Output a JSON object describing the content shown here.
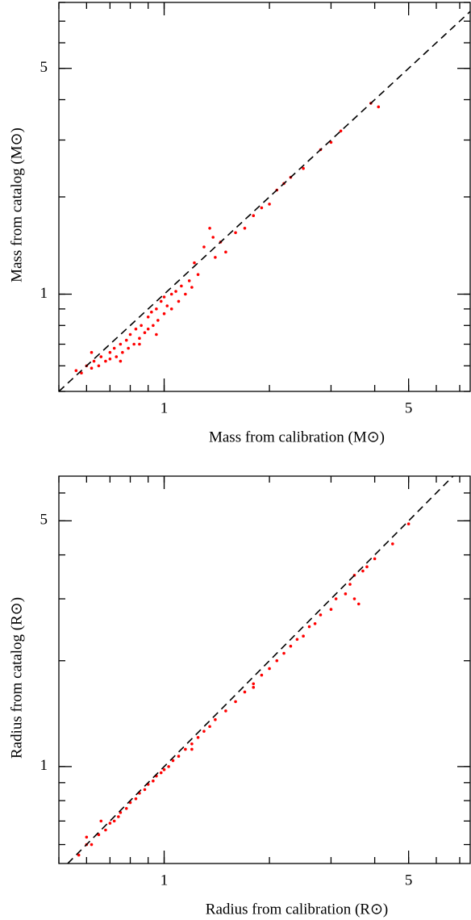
{
  "chart_data": [
    {
      "type": "scatter",
      "xlabel": "Mass from calibration (M⊙)",
      "ylabel": "Mass from catalog (M⊙)",
      "xscale": "log",
      "yscale": "log",
      "identity_line": true,
      "color": "#ff0000",
      "xlim": [
        0.5,
        7.5
      ],
      "ylim": [
        0.5,
        8
      ],
      "xticks": [
        1,
        5
      ],
      "yticks": [
        1,
        5
      ],
      "x": [
        0.56,
        0.58,
        0.6,
        0.62,
        0.63,
        0.65,
        0.66,
        0.68,
        0.7,
        0.7,
        0.72,
        0.73,
        0.75,
        0.76,
        0.78,
        0.79,
        0.8,
        0.82,
        0.83,
        0.85,
        0.86,
        0.88,
        0.9,
        0.9,
        0.92,
        0.93,
        0.95,
        0.96,
        0.98,
        1.0,
        1.0,
        1.02,
        1.05,
        1.05,
        1.08,
        1.1,
        1.12,
        1.15,
        1.18,
        1.2,
        1.22,
        1.25,
        1.3,
        1.35,
        1.38,
        1.4,
        1.45,
        1.5,
        1.6,
        1.7,
        1.8,
        1.9,
        2.0,
        2.1,
        2.2,
        2.3,
        2.5,
        2.8,
        3.0,
        3.2,
        3.9,
        4.1,
        0.62,
        0.75,
        0.85,
        0.95
      ],
      "y": [
        0.58,
        0.57,
        0.6,
        0.59,
        0.62,
        0.6,
        0.64,
        0.62,
        0.66,
        0.63,
        0.68,
        0.64,
        0.7,
        0.66,
        0.72,
        0.68,
        0.75,
        0.7,
        0.78,
        0.73,
        0.8,
        0.76,
        0.85,
        0.78,
        0.88,
        0.8,
        0.9,
        0.83,
        0.95,
        0.87,
        0.98,
        0.92,
        1.0,
        0.9,
        1.02,
        0.95,
        1.06,
        1.0,
        1.1,
        1.05,
        1.25,
        1.15,
        1.4,
        1.6,
        1.5,
        1.3,
        1.45,
        1.35,
        1.55,
        1.6,
        1.75,
        1.85,
        1.9,
        2.1,
        2.2,
        2.3,
        2.45,
        2.8,
        2.95,
        3.2,
        3.9,
        3.8,
        0.66,
        0.62,
        0.7,
        0.75
      ]
    },
    {
      "type": "scatter",
      "xlabel": "Radius from calibration (R⊙)",
      "ylabel": "Radius from catalog (R⊙)",
      "xscale": "log",
      "yscale": "log",
      "identity_line": true,
      "color": "#ff0000",
      "xlim": [
        0.5,
        7.5
      ],
      "ylim": [
        0.53,
        6.7
      ],
      "xticks": [
        1,
        5
      ],
      "yticks": [
        1,
        5
      ],
      "x": [
        0.57,
        0.6,
        0.62,
        0.65,
        0.68,
        0.7,
        0.72,
        0.75,
        0.78,
        0.8,
        0.83,
        0.85,
        0.88,
        0.9,
        0.93,
        0.95,
        0.98,
        1.0,
        1.03,
        1.06,
        1.1,
        1.15,
        1.2,
        1.25,
        1.3,
        1.35,
        1.4,
        1.5,
        1.6,
        1.7,
        1.8,
        1.9,
        2.0,
        2.1,
        2.2,
        2.3,
        2.5,
        2.6,
        2.7,
        2.8,
        3.0,
        3.1,
        3.3,
        3.4,
        3.5,
        3.5,
        3.6,
        3.7,
        3.8,
        4.0,
        4.5,
        5.0,
        0.6,
        0.66,
        0.74,
        1.2,
        1.8,
        2.4
      ],
      "y": [
        0.56,
        0.6,
        0.6,
        0.64,
        0.66,
        0.69,
        0.7,
        0.74,
        0.76,
        0.79,
        0.81,
        0.84,
        0.86,
        0.89,
        0.91,
        0.94,
        0.96,
        0.98,
        1.0,
        1.04,
        1.07,
        1.12,
        1.16,
        1.21,
        1.26,
        1.3,
        1.36,
        1.44,
        1.53,
        1.63,
        1.72,
        1.82,
        1.9,
        2.0,
        2.1,
        2.2,
        2.35,
        2.5,
        2.55,
        2.7,
        2.8,
        3.0,
        3.1,
        3.3,
        3.5,
        3.0,
        2.9,
        3.6,
        3.7,
        3.9,
        4.3,
        4.9,
        0.63,
        0.7,
        0.72,
        1.12,
        1.68,
        2.3
      ]
    }
  ]
}
